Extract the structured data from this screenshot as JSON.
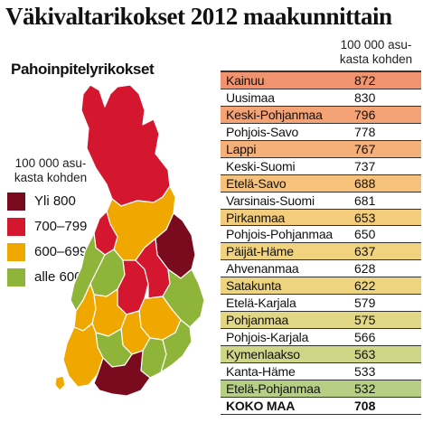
{
  "title": "Väkivaltarikokset 2012 maakunnittain",
  "subtitle": "Pahoinpitelyrikokset",
  "unit_label_map": [
    "100 000 asu-",
    "kasta kohden"
  ],
  "unit_label_table": [
    "100 000 asu-",
    "kasta kohden"
  ],
  "legend": [
    {
      "label": "Yli 800",
      "color": "#7a0a1e"
    },
    {
      "label": "700–799",
      "color": "#d4172f"
    },
    {
      "label": "600–699",
      "color": "#f0a800"
    },
    {
      "label": "alle 600",
      "color": "#8fb43a"
    }
  ],
  "rows": [
    {
      "name": "Kainuu",
      "value": "872",
      "bg": "#f0936e"
    },
    {
      "name": "Uusimaa",
      "value": "830",
      "bg": ""
    },
    {
      "name": "Keski-Pohjanmaa",
      "value": "796",
      "bg": "#f3a376"
    },
    {
      "name": "Pohjois-Savo",
      "value": "778",
      "bg": ""
    },
    {
      "name": "Lappi",
      "value": "767",
      "bg": "#f5b07a"
    },
    {
      "name": "Keski-Suomi",
      "value": "737",
      "bg": ""
    },
    {
      "name": "Etelä-Savo",
      "value": "688",
      "bg": "#f6c17a"
    },
    {
      "name": "Varsinais-Suomi",
      "value": "681",
      "bg": ""
    },
    {
      "name": "Pirkanmaa",
      "value": "653",
      "bg": "#f4cd7c"
    },
    {
      "name": "Pohjois-Pohjanmaa",
      "value": "650",
      "bg": ""
    },
    {
      "name": "Päijät-Häme",
      "value": "637",
      "bg": "#f1d27e"
    },
    {
      "name": "Ahvenanmaa",
      "value": "628",
      "bg": ""
    },
    {
      "name": "Satakunta",
      "value": "622",
      "bg": "#eed47f"
    },
    {
      "name": "Etelä-Karjala",
      "value": "579",
      "bg": ""
    },
    {
      "name": "Pohjanmaa",
      "value": "575",
      "bg": "#e2d784"
    },
    {
      "name": "Pohjois-Karjala",
      "value": "566",
      "bg": ""
    },
    {
      "name": "Kymenlaakso",
      "value": "563",
      "bg": "#cfd688"
    },
    {
      "name": "Kanta-Häme",
      "value": "533",
      "bg": ""
    },
    {
      "name": "Etelä-Pohjanmaa",
      "value": "532",
      "bg": "#b7cf84"
    },
    {
      "name": "KOKO MAA",
      "value": "708",
      "bg": "",
      "total": true
    }
  ]
}
